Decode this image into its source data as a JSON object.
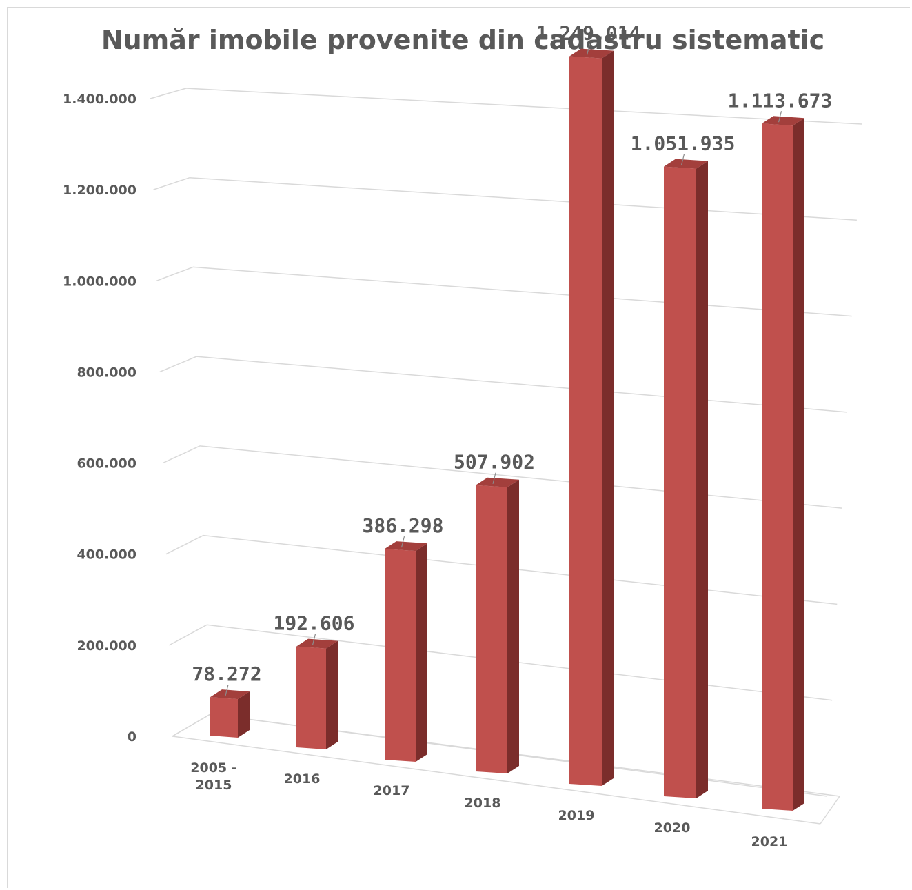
{
  "chart_data": {
    "type": "bar",
    "title": "Număr imobile provenite din cadastru sistematic",
    "xlabel": "",
    "ylabel": "",
    "categories": [
      [
        "2005 -",
        "2015"
      ],
      [
        "2016"
      ],
      [
        "2017"
      ],
      [
        "2018"
      ],
      [
        "2019"
      ],
      [
        "2020"
      ],
      [
        "2021"
      ]
    ],
    "values": [
      78272,
      192606,
      386298,
      507902,
      1249014,
      1051935,
      1113673
    ],
    "value_labels": [
      "78.272",
      "192.606",
      "386.298",
      "507.902",
      "1.249.014",
      "1.051.935",
      "1.113.673"
    ],
    "yticks": [
      0,
      200000,
      400000,
      600000,
      800000,
      1000000,
      1200000,
      1400000
    ],
    "ytick_labels": [
      "0",
      "200.000",
      "400.000",
      "600.000",
      "800.000",
      "1.000.000",
      "1.200.000",
      "1.400.000"
    ],
    "ylim": [
      0,
      1400000
    ],
    "grid": true,
    "legend": "none",
    "style": "3d-perspective",
    "colors": {
      "bar_front": "#c0504d",
      "bar_side": "#7b2d2b",
      "bar_top": "#a33f3c",
      "grid": "#d9d9d9",
      "text": "#595959"
    }
  }
}
